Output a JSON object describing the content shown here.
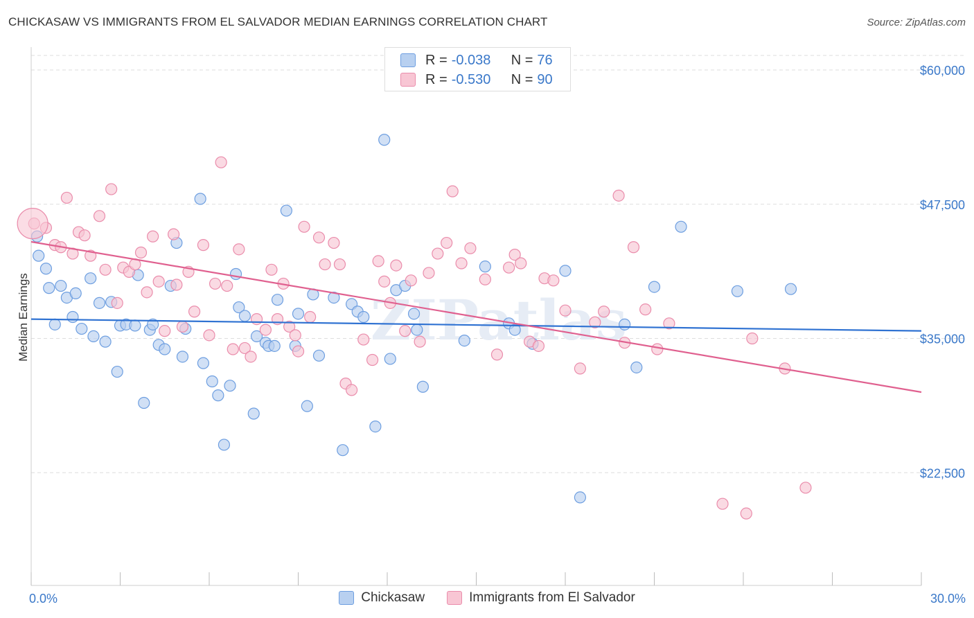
{
  "title": "CHICKASAW VS IMMIGRANTS FROM EL SALVADOR MEDIAN EARNINGS CORRELATION CHART",
  "source": "Source: ZipAtlas.com",
  "watermark": "ZIPatlas",
  "legend": {
    "series1": {
      "r_label": "R = ",
      "r_value": "-0.038",
      "n_label": "N = ",
      "n_value": "76"
    },
    "series2": {
      "r_label": "R = ",
      "r_value": "-0.530",
      "n_label": "N = ",
      "n_value": "90"
    }
  },
  "colors": {
    "blue_fill": "#b8d0f0",
    "blue_stroke": "#6d9ee0",
    "blue_line": "#2f72d2",
    "pink_fill": "#f8c6d4",
    "pink_stroke": "#ea8cab",
    "pink_line": "#e0608f",
    "axis_label": "#3a78c9",
    "grid": "#dddddd"
  },
  "chart_data": {
    "type": "scatter",
    "title": "CHICKASAW VS IMMIGRANTS FROM EL SALVADOR MEDIAN EARNINGS CORRELATION CHART",
    "ylabel": "Median Earnings",
    "xlabel": "",
    "xlim": [
      0,
      30
    ],
    "ylim": [
      12000,
      62000
    ],
    "x_tick_labels": [
      "0.0%",
      "30.0%"
    ],
    "y_ticks": [
      22500,
      35000,
      47500,
      60000
    ],
    "y_tick_labels": [
      "$22,500",
      "$35,000",
      "$47,500",
      "$60,000"
    ],
    "grid": true,
    "legend_position": "top-center",
    "series": [
      {
        "name": "Chickasaw",
        "trend": {
          "x": [
            0,
            30
          ],
          "y": [
            36800,
            35700
          ]
        },
        "points": [
          [
            0.2,
            44500
          ],
          [
            0.25,
            42700
          ],
          [
            0.5,
            41500
          ],
          [
            0.6,
            39700
          ],
          [
            0.8,
            36300
          ],
          [
            1.0,
            39900
          ],
          [
            1.2,
            38800
          ],
          [
            1.4,
            37000
          ],
          [
            1.5,
            39200
          ],
          [
            1.7,
            35900
          ],
          [
            2.0,
            40600
          ],
          [
            2.1,
            35200
          ],
          [
            2.3,
            38300
          ],
          [
            2.5,
            34700
          ],
          [
            2.7,
            38400
          ],
          [
            2.9,
            31900
          ],
          [
            3.0,
            36200
          ],
          [
            3.2,
            36300
          ],
          [
            3.5,
            36200
          ],
          [
            3.6,
            40900
          ],
          [
            3.8,
            29000
          ],
          [
            4.0,
            35800
          ],
          [
            4.1,
            36300
          ],
          [
            4.3,
            34400
          ],
          [
            4.5,
            34000
          ],
          [
            4.7,
            39900
          ],
          [
            4.9,
            43900
          ],
          [
            5.1,
            33300
          ],
          [
            5.2,
            35900
          ],
          [
            5.7,
            48000
          ],
          [
            5.8,
            32700
          ],
          [
            6.1,
            31000
          ],
          [
            6.3,
            29700
          ],
          [
            6.5,
            25100
          ],
          [
            6.7,
            30600
          ],
          [
            6.9,
            41000
          ],
          [
            7.0,
            37900
          ],
          [
            7.2,
            37100
          ],
          [
            7.5,
            28000
          ],
          [
            7.6,
            35200
          ],
          [
            7.9,
            34600
          ],
          [
            8.0,
            34300
          ],
          [
            8.2,
            34300
          ],
          [
            8.3,
            38600
          ],
          [
            8.6,
            46900
          ],
          [
            8.9,
            34300
          ],
          [
            9.0,
            37300
          ],
          [
            9.3,
            28700
          ],
          [
            9.5,
            39100
          ],
          [
            9.7,
            33400
          ],
          [
            10.2,
            38800
          ],
          [
            10.5,
            24600
          ],
          [
            10.8,
            38200
          ],
          [
            11.0,
            37500
          ],
          [
            11.2,
            37000
          ],
          [
            11.6,
            26800
          ],
          [
            11.9,
            53500
          ],
          [
            12.1,
            33100
          ],
          [
            12.3,
            39500
          ],
          [
            12.6,
            39900
          ],
          [
            12.9,
            37300
          ],
          [
            13.0,
            35800
          ],
          [
            13.2,
            30500
          ],
          [
            14.6,
            34800
          ],
          [
            15.3,
            41700
          ],
          [
            16.1,
            36400
          ],
          [
            16.3,
            35800
          ],
          [
            16.9,
            34500
          ],
          [
            18.0,
            41300
          ],
          [
            18.5,
            20200
          ],
          [
            20.0,
            36300
          ],
          [
            20.4,
            32300
          ],
          [
            21.0,
            39800
          ],
          [
            21.9,
            45400
          ],
          [
            23.8,
            39400
          ],
          [
            25.6,
            39600
          ]
        ]
      },
      {
        "name": "Immigrants from El Salvador",
        "trend": {
          "x": [
            0,
            30
          ],
          "y": [
            44000,
            30000
          ]
        },
        "points": [
          [
            0.1,
            45700
          ],
          [
            0.5,
            45300
          ],
          [
            0.8,
            43700
          ],
          [
            1.0,
            43500
          ],
          [
            1.2,
            48100
          ],
          [
            1.4,
            42900
          ],
          [
            1.6,
            44900
          ],
          [
            1.8,
            44600
          ],
          [
            2.0,
            42700
          ],
          [
            2.3,
            46400
          ],
          [
            2.5,
            41400
          ],
          [
            2.7,
            48900
          ],
          [
            2.9,
            38300
          ],
          [
            3.1,
            41600
          ],
          [
            3.3,
            41200
          ],
          [
            3.5,
            41900
          ],
          [
            3.7,
            43000
          ],
          [
            3.9,
            39300
          ],
          [
            4.1,
            44500
          ],
          [
            4.3,
            40300
          ],
          [
            4.5,
            35700
          ],
          [
            4.8,
            44700
          ],
          [
            4.9,
            40000
          ],
          [
            5.1,
            36100
          ],
          [
            5.3,
            41200
          ],
          [
            5.5,
            37500
          ],
          [
            5.8,
            43700
          ],
          [
            6.0,
            35300
          ],
          [
            6.2,
            40100
          ],
          [
            6.4,
            51400
          ],
          [
            6.6,
            39900
          ],
          [
            6.8,
            34000
          ],
          [
            7.0,
            43300
          ],
          [
            7.2,
            34100
          ],
          [
            7.4,
            33300
          ],
          [
            7.6,
            36800
          ],
          [
            7.9,
            35800
          ],
          [
            8.1,
            41400
          ],
          [
            8.3,
            36800
          ],
          [
            8.5,
            40100
          ],
          [
            8.7,
            36100
          ],
          [
            8.9,
            35300
          ],
          [
            9.2,
            45400
          ],
          [
            9.4,
            37000
          ],
          [
            9.7,
            44400
          ],
          [
            9.9,
            41900
          ],
          [
            10.2,
            43900
          ],
          [
            10.4,
            41900
          ],
          [
            10.6,
            30800
          ],
          [
            10.8,
            30200
          ],
          [
            11.2,
            34900
          ],
          [
            11.5,
            33000
          ],
          [
            11.7,
            42200
          ],
          [
            11.9,
            40300
          ],
          [
            12.1,
            38300
          ],
          [
            12.3,
            41800
          ],
          [
            12.6,
            35700
          ],
          [
            12.8,
            40400
          ],
          [
            13.1,
            34700
          ],
          [
            13.4,
            41100
          ],
          [
            13.7,
            42900
          ],
          [
            14.0,
            43900
          ],
          [
            14.2,
            48700
          ],
          [
            14.5,
            42000
          ],
          [
            14.8,
            43400
          ],
          [
            15.3,
            40500
          ],
          [
            15.7,
            33500
          ],
          [
            16.1,
            41600
          ],
          [
            16.3,
            42800
          ],
          [
            16.5,
            42000
          ],
          [
            16.8,
            34700
          ],
          [
            17.1,
            34300
          ],
          [
            17.3,
            40600
          ],
          [
            17.6,
            40400
          ],
          [
            18.0,
            37600
          ],
          [
            18.5,
            32200
          ],
          [
            19.0,
            36500
          ],
          [
            19.3,
            37500
          ],
          [
            19.8,
            48300
          ],
          [
            20.0,
            34600
          ],
          [
            20.3,
            43500
          ],
          [
            20.7,
            37700
          ],
          [
            21.1,
            34000
          ],
          [
            21.5,
            36400
          ],
          [
            23.3,
            19600
          ],
          [
            24.1,
            18700
          ],
          [
            25.4,
            32200
          ],
          [
            26.1,
            21100
          ],
          [
            24.3,
            35000
          ],
          [
            9.0,
            33800
          ]
        ]
      }
    ]
  },
  "bottom_legend": {
    "label1": "Chickasaw",
    "label2": "Immigrants from El Salvador"
  }
}
